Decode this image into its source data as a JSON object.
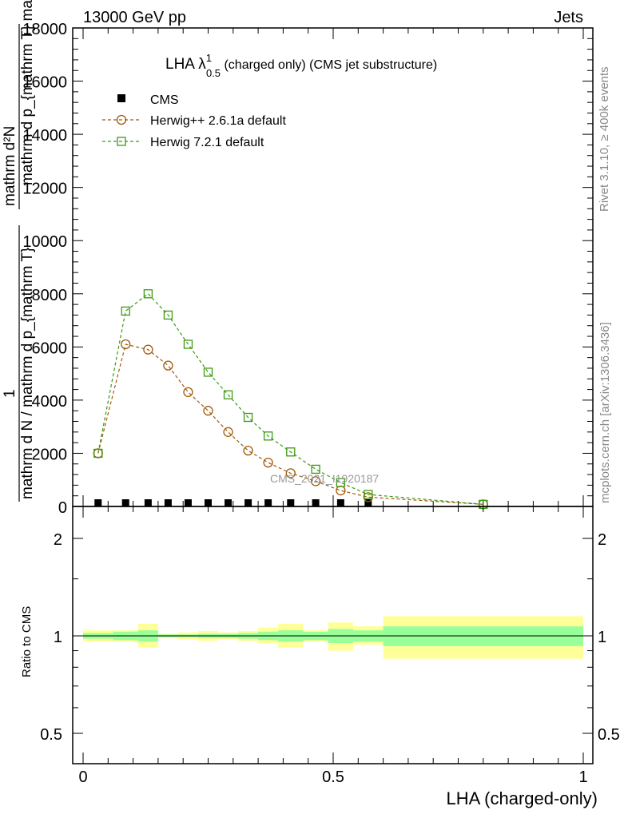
{
  "header": {
    "left": "13000 GeV pp",
    "right": "Jets"
  },
  "side_labels": {
    "rivet": "Rivet 3.1.10, ≥ 400k events",
    "mcplots": "mcplots.cern.ch [arXiv:1306.3436]"
  },
  "plot_title": {
    "main": "LHA λ",
    "sup": "1",
    "sub": "0.5",
    "rest": " (charged only) (CMS jet substructure)"
  },
  "watermark": "CMS_2021_I1920187",
  "ylabel_main": {
    "one": "1",
    "numerator": "mathrm dᶻN",
    "denominator_left": "mathrm d N",
    "denominator_right": "mathrm d p_{mathrm T} mathrm d lambda",
    "rendered_numer": "mathrm d²N",
    "rendered_denom1": "mathrm d p_{mathrm T} mathrm d lambda",
    "rendered_one": "1",
    "rendered_denom2": "mathrm d N / mathrm d p_{mathrm T}"
  },
  "ylabel_ratio": "Ratio to CMS",
  "xlabel": "LHA (charged-only)",
  "colors": {
    "cms": "#000000",
    "herwig_pp": "#a25a0a",
    "herwig7": "#3c9a10",
    "band_inner": "#99ff99",
    "band_outer": "#ffff99"
  },
  "chart_data": [
    {
      "type": "line",
      "panel": "main",
      "xlim": [
        0,
        1
      ],
      "ylim": [
        0,
        18000
      ],
      "yticks": [
        0,
        2000,
        4000,
        6000,
        8000,
        10000,
        12000,
        14000,
        16000,
        18000
      ],
      "ytick_labels": [
        "0",
        "2000",
        "4000",
        "6000",
        "8000",
        "10000",
        "12000",
        "14000",
        "16000",
        "18000"
      ],
      "legend": [
        "CMS",
        "Herwig++ 2.6.1a default",
        "Herwig 7.2.1 default"
      ],
      "legend_position": "top-left",
      "series": [
        {
          "name": "CMS",
          "style": "square-filled",
          "x": [
            0.03,
            0.085,
            0.13,
            0.17,
            0.21,
            0.25,
            0.29,
            0.33,
            0.37,
            0.415,
            0.465,
            0.515,
            0.57
          ],
          "y": [
            0,
            0,
            0,
            0,
            0,
            0,
            0,
            0,
            0,
            0,
            0,
            0,
            0
          ]
        },
        {
          "name": "Herwig++ 2.6.1a default",
          "style": "circle-open-dashed",
          "x": [
            0.03,
            0.085,
            0.13,
            0.17,
            0.21,
            0.25,
            0.29,
            0.33,
            0.37,
            0.415,
            0.465,
            0.515,
            0.57,
            0.8
          ],
          "y": [
            2000,
            6100,
            5900,
            5300,
            4300,
            3600,
            2800,
            2100,
            1650,
            1250,
            950,
            600,
            350,
            80
          ]
        },
        {
          "name": "Herwig 7.2.1 default",
          "style": "square-open-dashed",
          "x": [
            0.03,
            0.085,
            0.13,
            0.17,
            0.21,
            0.25,
            0.29,
            0.33,
            0.37,
            0.415,
            0.465,
            0.515,
            0.57,
            0.8
          ],
          "y": [
            2000,
            7350,
            8000,
            7200,
            6100,
            5050,
            4200,
            3350,
            2650,
            2050,
            1400,
            900,
            450,
            80
          ]
        }
      ]
    },
    {
      "type": "area",
      "panel": "ratio",
      "xlim": [
        0,
        1
      ],
      "ylim": [
        0.4,
        2.4
      ],
      "yscale": "log",
      "yticks": [
        0.5,
        1,
        2
      ],
      "ytick_labels": [
        "0.5",
        "1",
        "2"
      ],
      "xticks": [
        0,
        0.5,
        1
      ],
      "xtick_labels": [
        "0",
        "0.5",
        "1"
      ],
      "reference_line": 1,
      "bin_edges": [
        0,
        0.06,
        0.11,
        0.15,
        0.19,
        0.23,
        0.27,
        0.31,
        0.35,
        0.39,
        0.44,
        0.49,
        0.54,
        0.6,
        1.0
      ],
      "inner_band": {
        "low": [
          0.98,
          0.97,
          0.96,
          0.99,
          0.99,
          0.985,
          0.985,
          0.98,
          0.97,
          0.96,
          0.97,
          0.95,
          0.96,
          0.93,
          0.93
        ],
        "high": [
          1.02,
          1.03,
          1.04,
          1.01,
          1.01,
          1.015,
          1.015,
          1.02,
          1.03,
          1.04,
          1.03,
          1.05,
          1.04,
          1.07,
          1.07
        ]
      },
      "outer_band": {
        "low": [
          0.96,
          0.96,
          0.92,
          0.985,
          0.975,
          0.965,
          0.975,
          0.965,
          0.95,
          0.92,
          0.96,
          0.9,
          0.94,
          0.85,
          0.87
        ],
        "high": [
          1.04,
          1.04,
          1.09,
          1.015,
          1.025,
          1.035,
          1.025,
          1.035,
          1.06,
          1.09,
          1.04,
          1.1,
          1.07,
          1.15,
          1.14
        ]
      }
    }
  ]
}
